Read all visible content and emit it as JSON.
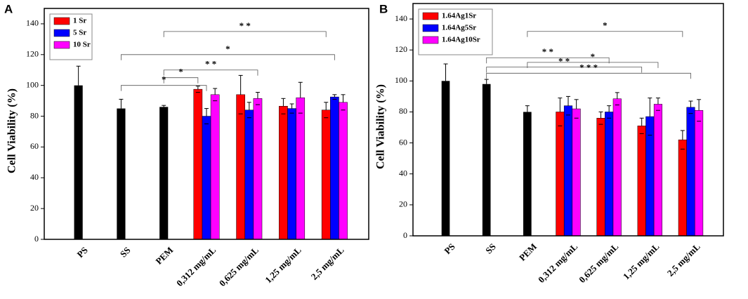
{
  "chart_data": [
    {
      "type": "bar",
      "panel": "A",
      "y_label": "Cell Viability (%)",
      "categories": [
        "PS",
        "SS",
        "PEM",
        "0,312 mg/mL",
        "0,625 mg/mL",
        "1,25 mg/mL",
        "2,5 mg/mL"
      ],
      "ylim": [
        0,
        150
      ],
      "yticks": [
        0,
        20,
        40,
        60,
        80,
        100,
        120,
        140
      ],
      "control_color": "#000000",
      "control_values": [
        100,
        85,
        86,
        null,
        null,
        null,
        null
      ],
      "control_errors": [
        12.5,
        6,
        1,
        null,
        null,
        null,
        null
      ],
      "series": [
        {
          "name": "1 Sr",
          "color": "#ff0000",
          "values": [
            null,
            null,
            null,
            97.5,
            94,
            86.5,
            84
          ],
          "errors": [
            null,
            null,
            null,
            2,
            12.5,
            5,
            5
          ]
        },
        {
          "name": "5 Sr",
          "color": "#0000ff",
          "values": [
            null,
            null,
            null,
            80,
            84,
            85,
            92.5
          ],
          "errors": [
            null,
            null,
            null,
            5,
            5,
            3,
            1.5
          ]
        },
        {
          "name": "10 Sr",
          "color": "#ff00ff",
          "values": [
            null,
            null,
            null,
            94,
            91.5,
            92,
            89
          ],
          "errors": [
            null,
            null,
            null,
            4,
            4,
            10,
            5
          ]
        }
      ],
      "brackets": [
        {
          "from": 2,
          "to": 6,
          "y": 135,
          "label": "* *"
        },
        {
          "from": 1,
          "to": 6,
          "y": 120,
          "label": "*"
        },
        {
          "from": 2,
          "to": 4,
          "y": 110,
          "label": "* *"
        },
        {
          "from": 2,
          "to": 3,
          "y": 105,
          "label": "*"
        },
        {
          "from": 1,
          "to": 3,
          "y": 100,
          "label": "*"
        }
      ]
    },
    {
      "type": "bar",
      "panel": "B",
      "y_label": "Cell Viability (%)",
      "categories": [
        "PS",
        "SS",
        "PEM",
        "0,312 mg/mL",
        "0,625 mg/mL",
        "1,25 mg/mL",
        "2,5 mg/mL"
      ],
      "ylim": [
        0,
        150
      ],
      "yticks": [
        0,
        20,
        40,
        60,
        80,
        100,
        120,
        140
      ],
      "control_color": "#000000",
      "control_values": [
        100,
        98,
        80,
        null,
        null,
        null,
        null
      ],
      "control_errors": [
        11,
        3,
        4,
        null,
        null,
        null,
        null
      ],
      "series": [
        {
          "name": "1.64Ag1Sr",
          "color": "#ff0000",
          "values": [
            null,
            null,
            null,
            80,
            76,
            71,
            62
          ],
          "errors": [
            null,
            null,
            null,
            9,
            4,
            5,
            6
          ]
        },
        {
          "name": "1.64Ag5Sr",
          "color": "#0000ff",
          "values": [
            null,
            null,
            null,
            84,
            80,
            77,
            83
          ],
          "errors": [
            null,
            null,
            null,
            6,
            4,
            12,
            4
          ]
        },
        {
          "name": "1.64Ag10Sr",
          "color": "#ff00ff",
          "values": [
            null,
            null,
            null,
            82,
            88.5,
            85,
            81
          ],
          "errors": [
            null,
            null,
            null,
            6,
            4,
            4,
            7
          ]
        }
      ],
      "brackets": [
        {
          "from": 2,
          "to": 6,
          "y": 132,
          "label": "*"
        },
        {
          "from": 1,
          "to": 4,
          "y": 115,
          "label": "* *"
        },
        {
          "from": 2,
          "to": 5,
          "y": 112,
          "label": "*"
        },
        {
          "from": 1,
          "to": 5,
          "y": 109,
          "label": "* *"
        },
        {
          "from": 1,
          "to": 6,
          "y": 105,
          "label": "* * *"
        }
      ]
    }
  ]
}
